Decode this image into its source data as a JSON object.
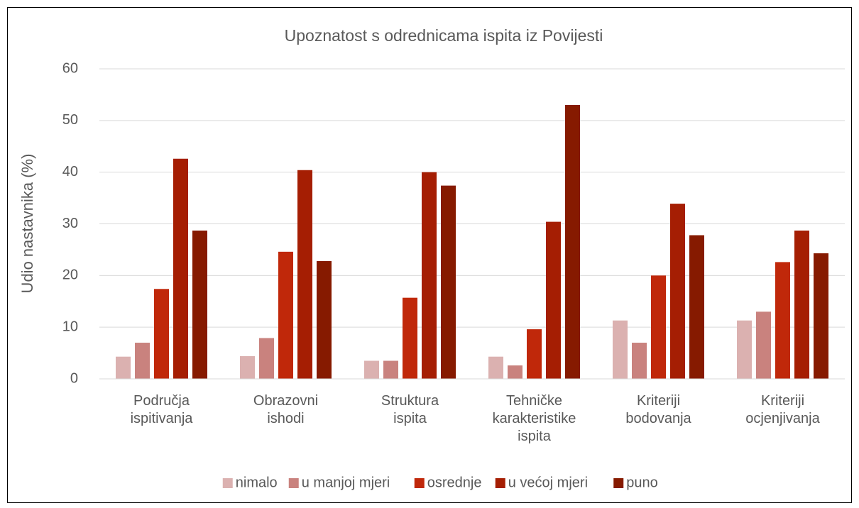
{
  "chart_data": {
    "type": "bar",
    "title": "Upoznatost s odrednicama ispita iz Povijesti",
    "y_label": "Udio nastavnika (%)",
    "categories": [
      "Područja ispitivanja",
      "Obrazovni ishodi",
      "Struktura ispita",
      "Tehničke karakteristike ispita",
      "Kriteriji bodovanja",
      "Kriteriji ocjenjivanja"
    ],
    "series": [
      {
        "name": "nimalo",
        "color": "#dbb1b0",
        "values": [
          4.3,
          4.4,
          3.5,
          4.3,
          11.3,
          11.3
        ]
      },
      {
        "name": "u manjoj mjeri",
        "color": "#c9827e",
        "values": [
          7.0,
          7.9,
          3.5,
          2.6,
          7.0,
          13.0
        ]
      },
      {
        "name": "osrednje",
        "color": "#c0280a",
        "values": [
          17.4,
          24.6,
          15.7,
          9.6,
          20.0,
          22.6
        ]
      },
      {
        "name": "u većoj mjeri",
        "color": "#a51e03",
        "values": [
          42.6,
          40.4,
          40.0,
          30.4,
          33.9,
          28.7
        ]
      },
      {
        "name": "puno",
        "color": "#861a00",
        "values": [
          28.7,
          22.8,
          37.4,
          53.0,
          27.8,
          24.3
        ]
      }
    ],
    "ylim": [
      0,
      60
    ],
    "yticks": [
      0,
      10,
      20,
      30,
      40,
      50,
      60
    ],
    "grid": true,
    "legend": "bottom"
  }
}
